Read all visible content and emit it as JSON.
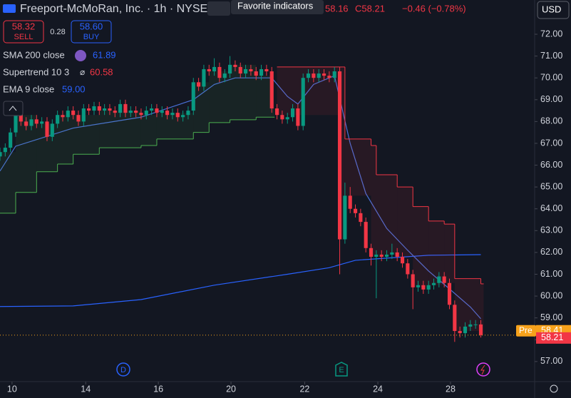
{
  "header": {
    "title": "Freeport-McMoRan, Inc. · 1h · NYSE",
    "tooltip": "Favorite indicators",
    "quote_partial": "58.16",
    "quote_close": "C58.21",
    "quote_change": "−0.46 (−0.78%)",
    "currency": "USD",
    "sell_price": "58.32",
    "sell_label": "SELL",
    "spread": "0.28",
    "buy_price": "58.60",
    "buy_label": "BUY",
    "legend": [
      {
        "name": "SMA 200 close",
        "value": "61.89"
      },
      {
        "name": "Supertrend 10 3",
        "value": "60.58"
      },
      {
        "name": "EMA 9 close",
        "value": "59.00"
      }
    ],
    "pre_label": "Pre",
    "pre_price": "58.41",
    "last_price": "58.21"
  },
  "chart_data": {
    "type": "candlestick",
    "up_color": "#089981",
    "down_color": "#f23645",
    "grid": false,
    "ylim": [
      56.08,
      73.57
    ],
    "xlim": [
      0,
      102.3
    ],
    "yticks": [
      {
        "value": 57,
        "label": "57.00"
      },
      {
        "value": 58,
        "label": "58.00"
      },
      {
        "value": 59,
        "label": "59.00"
      },
      {
        "value": 60,
        "label": "60.00"
      },
      {
        "value": 61,
        "label": "61.00"
      },
      {
        "value": 62,
        "label": "62.00"
      },
      {
        "value": 63,
        "label": "63.00"
      },
      {
        "value": 64,
        "label": "64.00"
      },
      {
        "value": 65,
        "label": "65.00"
      },
      {
        "value": 66,
        "label": "66.00"
      },
      {
        "value": 67,
        "label": "67.00"
      },
      {
        "value": 68,
        "label": "68.00"
      },
      {
        "value": 69,
        "label": "69.00"
      },
      {
        "value": 70,
        "label": "70.00"
      },
      {
        "value": 71,
        "label": "71.00"
      },
      {
        "value": 72,
        "label": "72.00"
      }
    ],
    "xticks": [
      {
        "value": 2.3,
        "label": "10"
      },
      {
        "value": 16.4,
        "label": "14"
      },
      {
        "value": 30.3,
        "label": "16"
      },
      {
        "value": 44.2,
        "label": "20"
      },
      {
        "value": 58.3,
        "label": "22"
      },
      {
        "value": 72.3,
        "label": "24"
      },
      {
        "value": 86.2,
        "label": "28"
      }
    ],
    "x": [
      0,
      1,
      2,
      3,
      4,
      5,
      6,
      7,
      8,
      9,
      10,
      11,
      12,
      13,
      14,
      15,
      16,
      17,
      18,
      19,
      20,
      21,
      22,
      23,
      24,
      25,
      26,
      27,
      28,
      29,
      30,
      31,
      32,
      33,
      34,
      35,
      36,
      37,
      38,
      39,
      40,
      41,
      42,
      43,
      44,
      45,
      46,
      47,
      48,
      49,
      50,
      51,
      52,
      53,
      54,
      55,
      56,
      57,
      58,
      59,
      60,
      61,
      62,
      63,
      64,
      65,
      66,
      67,
      68,
      69,
      70,
      71,
      72,
      73,
      74,
      75,
      76,
      77,
      78,
      79,
      80,
      81,
      82,
      83,
      84,
      85,
      86,
      87,
      88,
      89,
      90,
      91,
      92
    ],
    "open": [
      66.4,
      66.6,
      66.8,
      67.5,
      68.3,
      68.0,
      67.8,
      68.1,
      67.9,
      68.0,
      67.3,
      67.9,
      68.3,
      68.2,
      68.5,
      68.3,
      68.0,
      68.6,
      68.5,
      68.7,
      68.5,
      68.6,
      68.5,
      68.4,
      68.8,
      68.4,
      68.5,
      68.4,
      68.3,
      68.5,
      68.6,
      68.4,
      68.5,
      68.3,
      68.4,
      68.2,
      68.3,
      68.5,
      69.8,
      69.6,
      70.4,
      70.3,
      70.5,
      70.0,
      70.2,
      70.6,
      70.5,
      70.2,
      70.4,
      70.3,
      70.1,
      70.4,
      70.3,
      68.6,
      68.3,
      68.1,
      68.2,
      68.6,
      67.8,
      70.0,
      70.2,
      70.0,
      70.2,
      70.1,
      70.0,
      70.3,
      62.6,
      64.6,
      64.0,
      63.8,
      63.4,
      62.2,
      61.8,
      61.9,
      61.8,
      61.9,
      62.0,
      61.8,
      61.5,
      61.0,
      60.4,
      60.5,
      60.3,
      60.5,
      60.6,
      60.9,
      60.6,
      59.6,
      58.4,
      58.3,
      58.6,
      58.7,
      58.7
    ],
    "high": [
      66.8,
      67.0,
      67.7,
      68.5,
      68.5,
      68.2,
      68.3,
      68.3,
      68.2,
      68.2,
      68.1,
      68.5,
      68.5,
      68.7,
      68.7,
      68.5,
      68.8,
      68.8,
      68.9,
      68.9,
      68.8,
      68.8,
      68.7,
      69.0,
      69.0,
      68.7,
      68.7,
      68.6,
      68.7,
      68.8,
      68.8,
      68.7,
      68.7,
      68.6,
      68.6,
      68.5,
      68.7,
      70.0,
      70.0,
      70.6,
      70.6,
      70.9,
      70.7,
      70.4,
      71.0,
      70.8,
      70.7,
      70.6,
      70.6,
      70.5,
      70.6,
      70.6,
      70.5,
      68.8,
      68.5,
      68.4,
      68.8,
      68.8,
      70.2,
      70.4,
      70.4,
      70.4,
      70.4,
      70.3,
      70.5,
      70.5,
      65.2,
      65.0,
      64.2,
      64.0,
      63.6,
      62.4,
      62.1,
      62.1,
      62.1,
      62.4,
      62.2,
      62.0,
      61.7,
      61.2,
      60.7,
      60.7,
      60.7,
      60.8,
      61.1,
      61.1,
      60.8,
      59.8,
      58.6,
      58.8,
      58.9,
      58.9,
      58.9
    ],
    "low": [
      66.2,
      66.4,
      66.6,
      67.3,
      67.8,
      67.6,
      67.6,
      67.7,
      67.7,
      67.1,
      67.1,
      67.7,
      68.0,
      68.0,
      68.1,
      67.8,
      67.8,
      68.3,
      68.3,
      68.3,
      68.3,
      68.3,
      68.2,
      68.2,
      68.2,
      68.2,
      68.2,
      68.1,
      68.1,
      68.3,
      68.2,
      68.2,
      68.1,
      68.1,
      68.0,
      68.0,
      68.1,
      68.3,
      69.4,
      69.4,
      70.1,
      70.1,
      69.8,
      69.8,
      70.0,
      70.3,
      70.0,
      70.0,
      70.1,
      69.9,
      69.9,
      70.1,
      68.4,
      68.1,
      67.9,
      67.9,
      68.0,
      67.6,
      67.6,
      69.8,
      69.8,
      69.8,
      69.9,
      69.8,
      69.8,
      61.0,
      62.4,
      63.8,
      63.6,
      63.2,
      62.0,
      61.4,
      59.9,
      61.6,
      61.6,
      61.7,
      61.6,
      61.3,
      60.8,
      59.4,
      60.2,
      60.1,
      60.1,
      60.3,
      60.4,
      60.4,
      59.4,
      57.9,
      58.1,
      58.1,
      58.4,
      58.5,
      58.1
    ],
    "close": [
      66.6,
      66.8,
      67.5,
      68.3,
      68.0,
      67.8,
      68.1,
      67.9,
      68.0,
      67.3,
      67.9,
      68.3,
      68.2,
      68.5,
      68.3,
      68.0,
      68.6,
      68.5,
      68.7,
      68.5,
      68.6,
      68.5,
      68.4,
      68.8,
      68.4,
      68.5,
      68.4,
      68.3,
      68.5,
      68.6,
      68.4,
      68.5,
      68.3,
      68.4,
      68.2,
      68.3,
      68.5,
      69.8,
      69.6,
      70.4,
      70.3,
      70.5,
      70.0,
      70.2,
      70.6,
      70.5,
      70.2,
      70.4,
      70.3,
      70.1,
      70.4,
      70.3,
      68.6,
      68.3,
      68.1,
      68.2,
      68.6,
      67.8,
      70.0,
      70.2,
      70.0,
      70.2,
      70.1,
      70.0,
      70.3,
      62.6,
      64.6,
      64.0,
      63.8,
      63.4,
      62.2,
      61.8,
      61.9,
      61.8,
      61.9,
      62.0,
      61.8,
      61.5,
      61.0,
      60.4,
      60.5,
      60.3,
      60.5,
      60.6,
      60.9,
      60.6,
      59.6,
      58.4,
      58.3,
      58.6,
      58.7,
      58.7,
      58.21
    ],
    "last": 58.21,
    "pre": 58.41,
    "series": [
      {
        "name": "SMA 200 close",
        "color": "#2962ff",
        "x": [
          0,
          14,
          27,
          41,
          55,
          63,
          68,
          82,
          92
        ],
        "values": [
          59.52,
          59.55,
          59.84,
          60.5,
          61.0,
          61.3,
          61.64,
          61.87,
          61.9
        ]
      },
      {
        "name": "EMA 9 close",
        "color": "#4a6fd8",
        "x": [
          0,
          3,
          14,
          27,
          37,
          41,
          45,
          52,
          55,
          57,
          60,
          64,
          67,
          70,
          74,
          78,
          82,
          86,
          90,
          92
        ],
        "values": [
          65.73,
          66.87,
          67.7,
          68.2,
          69.0,
          69.7,
          70.0,
          70.0,
          69.15,
          68.8,
          69.7,
          70.1,
          67.0,
          64.7,
          63.1,
          62.1,
          61.15,
          60.33,
          59.5,
          58.96
        ]
      },
      {
        "name": "Supertrend 10 3",
        "segments": [
          {
            "color": "#4caf50",
            "x": [
              0,
              3,
              7,
              11,
              14,
              19,
              27,
              30,
              37,
              40,
              44,
              49,
              52
            ],
            "values": [
              63.8,
              64.75,
              65.7,
              66.05,
              66.5,
              66.8,
              66.9,
              67.2,
              67.5,
              67.95,
              68.08,
              68.2,
              68.2
            ]
          },
          {
            "color": "#f23645",
            "x": [
              53,
              65,
              66,
              71,
              72,
              76,
              79,
              82,
              85,
              87,
              92
            ],
            "values": [
              70.5,
              70.5,
              67.2,
              66.9,
              65.56,
              65.0,
              64.1,
              63.44,
              63.3,
              60.8,
              60.56
            ]
          }
        ]
      }
    ]
  }
}
